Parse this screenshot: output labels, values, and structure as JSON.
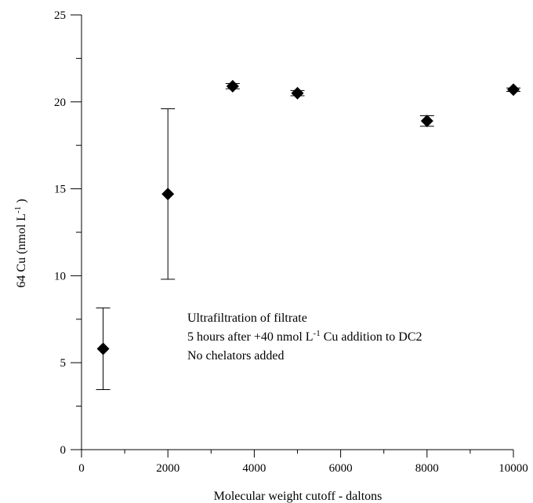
{
  "chart_data": {
    "type": "scatter",
    "title": "",
    "xlabel": "Molecular weight cutoff - daltons",
    "ylabel_parts": {
      "prefix": "64 Cu (nmol L",
      "exponent": "-1",
      "suffix": " )"
    },
    "xlim": [
      0,
      10000
    ],
    "ylim": [
      0,
      25
    ],
    "x_ticks": [
      0,
      2000,
      4000,
      6000,
      8000,
      10000
    ],
    "x_minor_ticks": [
      1000,
      3000,
      5000,
      7000,
      9000
    ],
    "y_ticks": [
      0,
      5,
      10,
      15,
      20,
      25
    ],
    "y_minor_ticks": [
      2.5,
      7.5,
      12.5,
      17.5,
      22.5
    ],
    "grid": false,
    "marker": "diamond",
    "marker_color": "#000000",
    "points": [
      {
        "x": 500,
        "y": 5.8,
        "err": 2.35
      },
      {
        "x": 2000,
        "y": 14.7,
        "err": 4.9
      },
      {
        "x": 3500,
        "y": 20.9,
        "err": 0.15
      },
      {
        "x": 5000,
        "y": 20.5,
        "err": 0.15
      },
      {
        "x": 8000,
        "y": 18.9,
        "err": 0.3
      },
      {
        "x": 10000,
        "y": 20.7,
        "err": 0.1
      }
    ],
    "annotation": {
      "line1": "Ultrafiltration of filtrate",
      "line2_prefix": "5 hours after +40 nmol L",
      "line2_exponent": "-1",
      "line2_suffix": " Cu addition to DC2",
      "line3": "No chelators added"
    }
  }
}
